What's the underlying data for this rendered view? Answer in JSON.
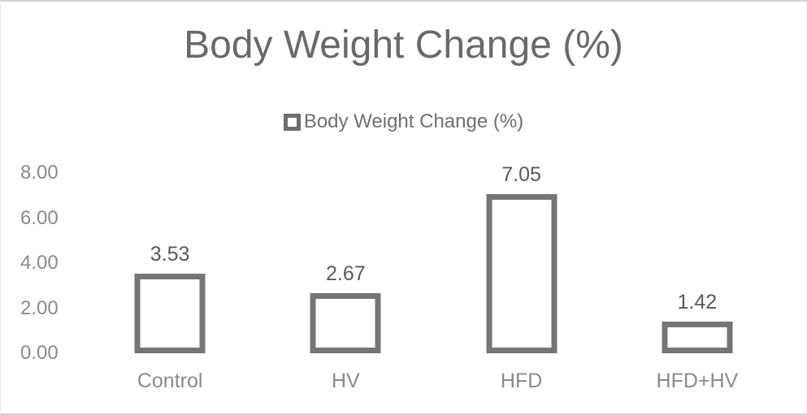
{
  "chart_data": {
    "type": "bar",
    "title": "Body Weight Change (%)",
    "legend_label": "Body Weight Change (%)",
    "legend_position": "top",
    "categories": [
      "Control",
      "HV",
      "HFD",
      "HFD+HV"
    ],
    "values": [
      3.53,
      2.67,
      7.05,
      1.42
    ],
    "value_labels": [
      "3.53",
      "2.67",
      "7.05",
      "1.42"
    ],
    "xlabel": "",
    "ylabel": "",
    "ylim": [
      0,
      8
    ],
    "yticks": [
      0,
      2,
      4,
      6,
      8
    ],
    "ytick_labels": [
      "0.00",
      "2.00",
      "4.00",
      "6.00",
      "8.00"
    ],
    "grid": false,
    "axis_lines": false,
    "colors": {
      "bar_fill": "#ffffff",
      "bar_border": "#757575",
      "title_text": "#696969",
      "data_label_text": "#595959",
      "axis_label_text": "#8a8a8a",
      "legend_text": "#6f6f6f",
      "frame_border": "#d2d2d2"
    }
  }
}
